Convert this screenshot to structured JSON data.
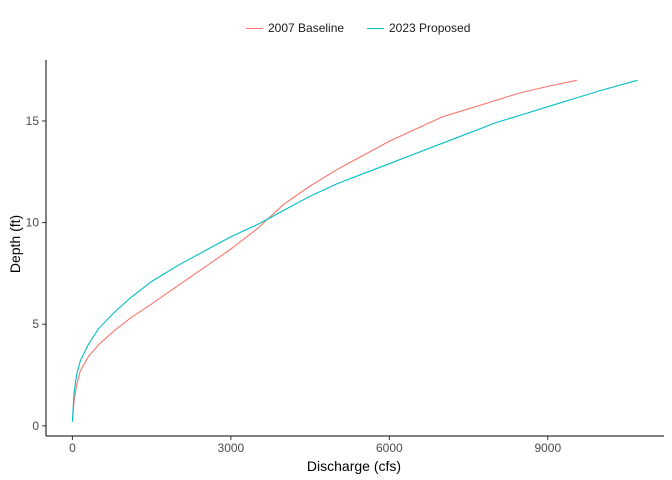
{
  "chart_data": {
    "type": "line",
    "title": "",
    "xlabel": "Discharge (cfs)",
    "ylabel": "Depth (ft)",
    "xlim": [
      -500,
      11200
    ],
    "ylim": [
      -0.5,
      18
    ],
    "xticks": [
      0,
      3000,
      6000,
      9000
    ],
    "xtick_labels": [
      "0",
      "3000",
      "6000",
      "9000"
    ],
    "yticks": [
      0,
      5,
      10,
      15
    ],
    "ytick_labels": [
      "0",
      "5",
      "10",
      "15"
    ],
    "grid": false,
    "legend_position": "top",
    "series": [
      {
        "name": "2007 Baseline",
        "color": "#F8766D",
        "x": [
          0,
          30,
          80,
          150,
          300,
          500,
          800,
          1100,
          1500,
          2000,
          2500,
          3000,
          3500,
          4000,
          4500,
          5000,
          5500,
          6000,
          6500,
          7000,
          7500,
          8000,
          8500,
          9000,
          9550
        ],
        "y": [
          0.2,
          1.2,
          2.0,
          2.7,
          3.4,
          4.0,
          4.7,
          5.3,
          6.0,
          6.9,
          7.8,
          8.7,
          9.7,
          10.9,
          11.8,
          12.6,
          13.3,
          14.0,
          14.6,
          15.2,
          15.6,
          16.0,
          16.4,
          16.7,
          17.0
        ]
      },
      {
        "name": "2023 Proposed",
        "color": "#00BFC4",
        "x": [
          0,
          30,
          80,
          150,
          300,
          500,
          800,
          1100,
          1500,
          2000,
          2500,
          3000,
          3500,
          4000,
          4500,
          5000,
          5500,
          6000,
          6500,
          7000,
          7500,
          8000,
          8500,
          9000,
          9500,
          10000,
          10700
        ],
        "y": [
          0.2,
          1.6,
          2.5,
          3.2,
          4.0,
          4.8,
          5.6,
          6.3,
          7.1,
          7.9,
          8.6,
          9.3,
          9.9,
          10.6,
          11.3,
          11.9,
          12.4,
          12.9,
          13.4,
          13.9,
          14.4,
          14.9,
          15.3,
          15.7,
          16.1,
          16.5,
          17.0
        ]
      }
    ]
  }
}
